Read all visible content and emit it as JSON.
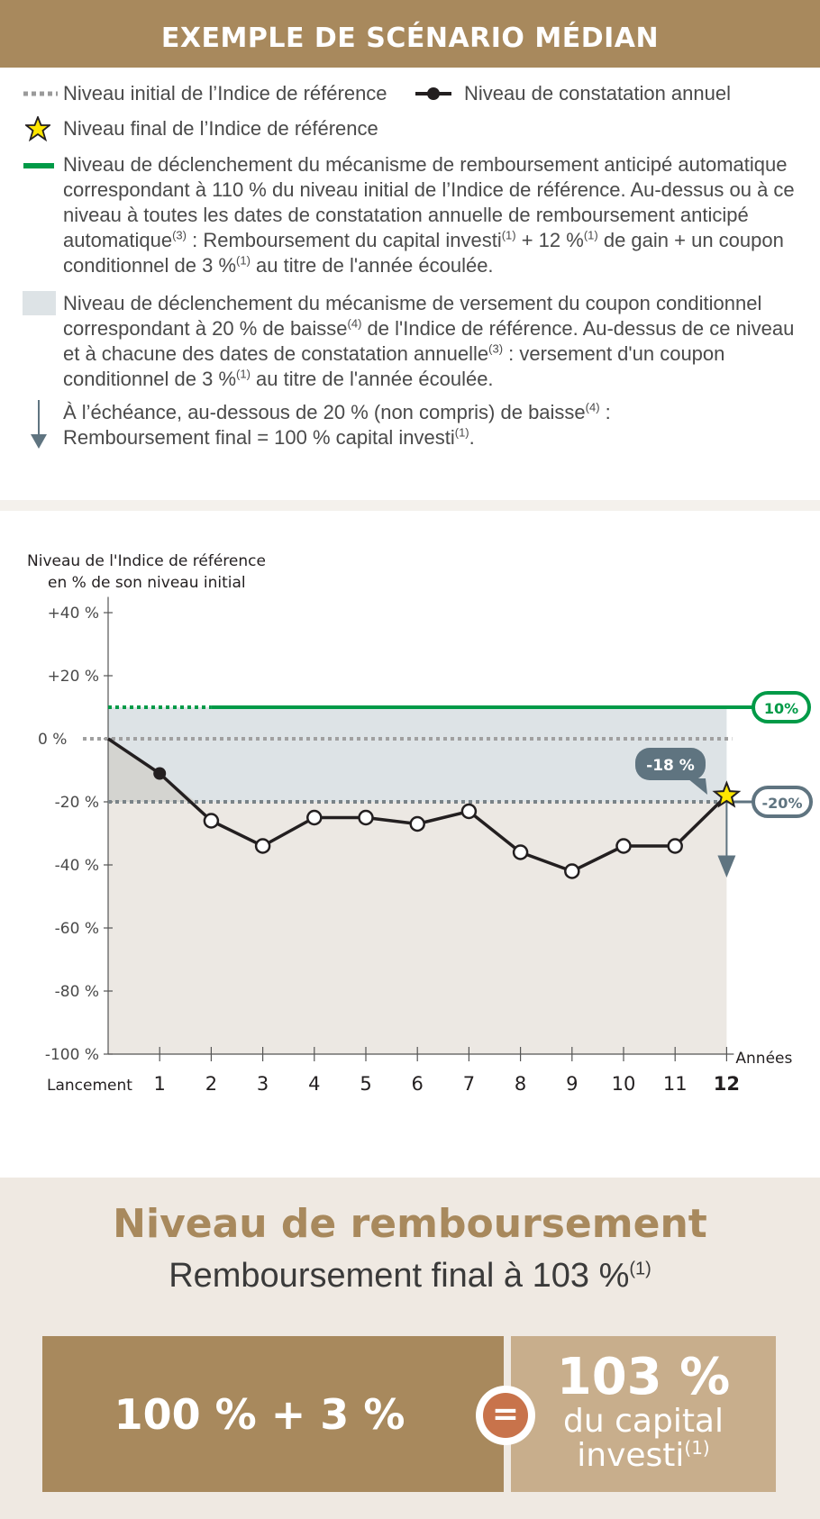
{
  "header": {
    "title": "EXEMPLE DE SCÉNARIO MÉDIAN"
  },
  "legend": {
    "initial_level": "Niveau initial de l’Indice de référence",
    "annual_level": "Niveau de constatation annuel",
    "final_level": "Niveau final de l’Indice de référence",
    "autocall": {
      "p1": "Niveau de déclenchement du mécanisme de remboursement anticipé automatique correspondant à 110 % du niveau initial de l’Indice de référence. Au-dessus ou à ce niveau à toutes les dates de constatation annuelle de remboursement anticipé automatique",
      "sup1": "(3)",
      "p2": " : Remboursement du capital investi",
      "sup2": "(1)",
      "p3": " + 12 %",
      "sup3": "(1)",
      "p4": " de gain + un coupon conditionnel de 3 %",
      "sup4": "(1)",
      "p5": " au titre de l'année écoulée."
    },
    "coupon": {
      "p1": "Niveau de déclenchement du mécanisme de versement du coupon conditionnel correspondant à 20 % de baisse",
      "sup1": "(4)",
      "p2": " de l'Indice de référence. Au-dessus de ce niveau et à chacune des dates de constatation annuelle",
      "sup2": "(3)",
      "p3": " : versement d'un coupon conditionnel de 3 %",
      "sup3": "(1)",
      "p4": " au titre de l'année écoulée."
    },
    "maturity": {
      "p1": "À l’échéance, au-dessous de 20 % (non compris) de baisse",
      "sup1": "(4)",
      "p2": " : ",
      "p3": "Remboursement final = 100 % capital investi",
      "sup2": "(1)",
      "p4": "."
    }
  },
  "chart_data": {
    "type": "line",
    "ylabel_line1": "Niveau de l'Indice de référence",
    "ylabel_line2": "en % de son niveau initial",
    "xlabel": "Années",
    "ylim": [
      -100,
      40
    ],
    "y_ticks": [
      40,
      20,
      0,
      -20,
      -40,
      -60,
      -80,
      -100
    ],
    "y_tick_labels": [
      "+40 %",
      "+20 %",
      "0 %",
      "-20 %",
      "-40 %",
      "-60 %",
      "-80 %",
      "-100 %"
    ],
    "x_ticks": [
      0,
      1,
      2,
      3,
      4,
      5,
      6,
      7,
      8,
      9,
      10,
      11,
      12
    ],
    "x_tick_labels": [
      "Lancement",
      "1",
      "2",
      "3",
      "4",
      "5",
      "6",
      "7",
      "8",
      "9",
      "10",
      "11",
      "12"
    ],
    "series": [
      {
        "x": [
          0,
          1,
          2,
          3,
          4,
          5,
          6,
          7,
          8,
          9,
          10,
          11,
          12
        ],
        "values": [
          0,
          -11,
          -26,
          -34,
          -25,
          -25,
          -27,
          -23,
          -36,
          -42,
          -34,
          -34,
          -18
        ]
      }
    ],
    "autocall_level": 10,
    "coupon_barrier": -20,
    "initial_level": 0,
    "autocall_label": "10%",
    "barrier_label": "-20%",
    "final_value_label": "-18 %",
    "colors": {
      "autocall": "#009a47",
      "barrier_fill": "#dde3e6",
      "below_fill": "#ece8e3",
      "line": "#231f20",
      "dotted": "#a0a0a0",
      "barrier_label": "#5f7480",
      "star": "#ffe600"
    }
  },
  "result": {
    "title": "Niveau de remboursement",
    "subtitle": "Remboursement final à 103 %",
    "subtitle_sup": "(1)",
    "formula": "100 % + 3 %",
    "equals": "=",
    "total": "103 %",
    "total_line1": "du capital",
    "total_line2": "investi",
    "total_sup": "(1)"
  }
}
